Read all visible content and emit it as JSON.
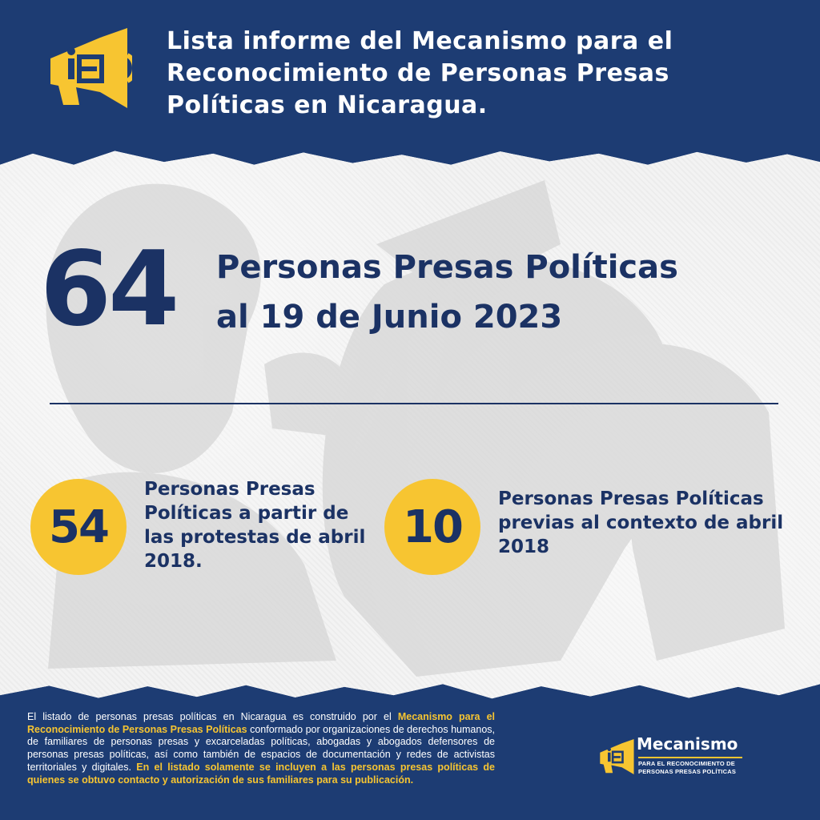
{
  "header": {
    "title": "Lista informe del Mecanismo para el Reconocimiento de Personas Presas Políticas en Nicaragua."
  },
  "main": {
    "total_number": "64",
    "total_line1": "Personas Presas Políticas",
    "total_line2": "al 19 de Junio 2023"
  },
  "stats": [
    {
      "number": "54",
      "text": "Personas Presas Políticas a partir de las protestas de abril 2018."
    },
    {
      "number": "10",
      "text": "Personas Presas Políticas previas al contexto de abril 2018"
    }
  ],
  "footer": {
    "text_part1": "El listado de personas presas políticas en Nicaragua es construido por el ",
    "highlight1": "Mecanismo para el Reconocimiento de Personas Presas Políticas",
    "text_part2": " conformado por organizaciones de derechos humanos, de familiares de personas presas y excarceladas políticas, abogadas y abogados defensores de personas presas políticas, así como también de espacios de documentación y redes de activistas territoriales y digitales. ",
    "highlight2": "En el listado solamente se incluyen a las personas presas políticas de quienes se obtuvo contacto y autorización de sus familiares para su publicación."
  },
  "footer_logo": {
    "title": "Mecanismo",
    "subtitle1": "PARA EL RECONOCIMIENTO DE",
    "subtitle2": "PERSONAS PRESAS POLÍTICAS"
  },
  "colors": {
    "navy": "#1d3c73",
    "dark_navy_text": "#1b3264",
    "yellow": "#f7c531"
  },
  "icons": {
    "logo": "megaphone-icon"
  }
}
